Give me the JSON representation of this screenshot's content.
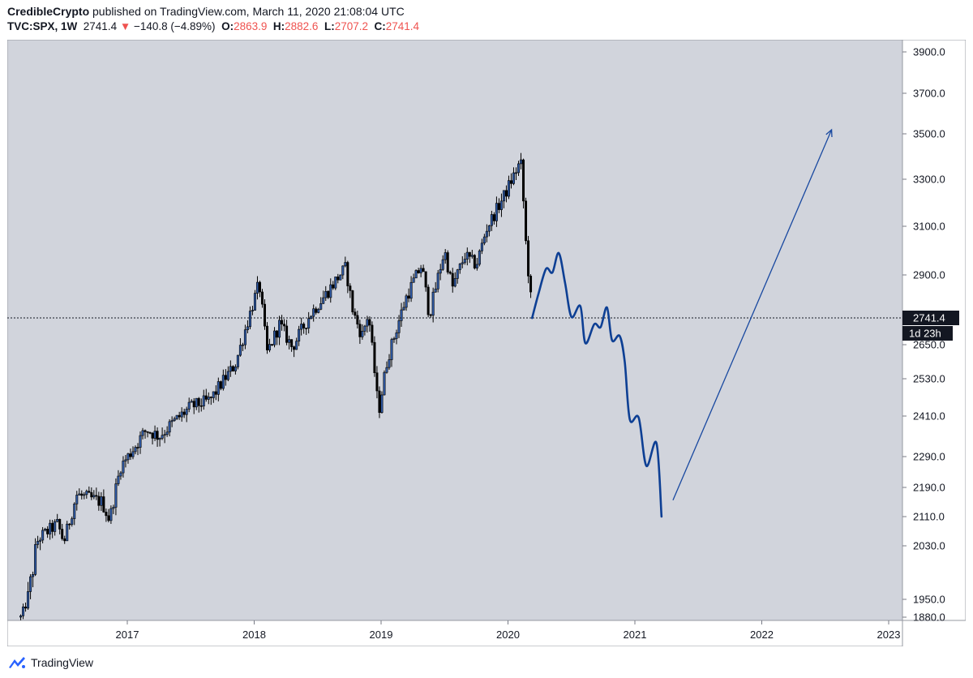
{
  "header": {
    "author": "CredibleCrypto",
    "published": "published on TradingView.com, March 11, 2020 21:08:04 UTC",
    "symbol": "TVC:SPX, 1W",
    "last": "2741.4",
    "change": "−140.8 (−4.89%)",
    "o_label": "O:",
    "o_value": "2863.9",
    "h_label": "H:",
    "h_value": "2882.6",
    "l_label": "L:",
    "l_value": "2707.2",
    "c_label": "C:",
    "c_value": "2741.4"
  },
  "footer": {
    "brand": "TradingView"
  },
  "colors": {
    "plot_bg": "#d1d4dc",
    "projection": "#0d3f94",
    "arrow": "#1848a0",
    "label_bg": "#131722"
  },
  "chart_data": {
    "type": "candlestick",
    "title": "TVC:SPX, 1W",
    "yticks": [
      "3900.0",
      "3700.0",
      "3500.0",
      "3300.0",
      "3100.0",
      "2900.0",
      "2650.0",
      "2530.0",
      "2410.0",
      "2290.0",
      "2190.0",
      "2110.0",
      "2030.0",
      "1950.0",
      "1880.0"
    ],
    "xticks": [
      "2017",
      "2018",
      "2019",
      "2020",
      "2021",
      "2022",
      "2023"
    ],
    "price_line": {
      "value": 2741.4,
      "label": "2741.4",
      "countdown": "1d 23h"
    },
    "price_anchors": [
      {
        "t": 2016.16,
        "p": 1880
      },
      {
        "t": 2016.3,
        "p": 2050
      },
      {
        "t": 2016.45,
        "p": 2090
      },
      {
        "t": 2016.5,
        "p": 2040
      },
      {
        "t": 2016.6,
        "p": 2170
      },
      {
        "t": 2016.8,
        "p": 2150
      },
      {
        "t": 2016.86,
        "p": 2100
      },
      {
        "t": 2016.95,
        "p": 2260
      },
      {
        "t": 2017.15,
        "p": 2370
      },
      {
        "t": 2017.25,
        "p": 2350
      },
      {
        "t": 2017.5,
        "p": 2440
      },
      {
        "t": 2017.65,
        "p": 2460
      },
      {
        "t": 2017.85,
        "p": 2580
      },
      {
        "t": 2018.04,
        "p": 2870
      },
      {
        "t": 2018.1,
        "p": 2620
      },
      {
        "t": 2018.2,
        "p": 2720
      },
      {
        "t": 2018.3,
        "p": 2640
      },
      {
        "t": 2018.45,
        "p": 2760
      },
      {
        "t": 2018.55,
        "p": 2820
      },
      {
        "t": 2018.72,
        "p": 2930
      },
      {
        "t": 2018.78,
        "p": 2760
      },
      {
        "t": 2018.85,
        "p": 2680
      },
      {
        "t": 2018.9,
        "p": 2760
      },
      {
        "t": 2018.98,
        "p": 2420
      },
      {
        "t": 2019.05,
        "p": 2600
      },
      {
        "t": 2019.2,
        "p": 2820
      },
      {
        "t": 2019.32,
        "p": 2940
      },
      {
        "t": 2019.38,
        "p": 2750
      },
      {
        "t": 2019.5,
        "p": 3000
      },
      {
        "t": 2019.56,
        "p": 2850
      },
      {
        "t": 2019.66,
        "p": 2980
      },
      {
        "t": 2019.75,
        "p": 2940
      },
      {
        "t": 2019.83,
        "p": 3090
      },
      {
        "t": 2019.97,
        "p": 3230
      },
      {
        "t": 2020.1,
        "p": 3380
      },
      {
        "t": 2020.12,
        "p": 3220
      },
      {
        "t": 2020.15,
        "p": 2950
      },
      {
        "t": 2020.17,
        "p": 2880
      },
      {
        "t": 2020.19,
        "p": 2741
      }
    ],
    "projection_path": [
      {
        "t": 2020.19,
        "p": 2741
      },
      {
        "t": 2020.24,
        "p": 2830
      },
      {
        "t": 2020.3,
        "p": 2925
      },
      {
        "t": 2020.35,
        "p": 2910
      },
      {
        "t": 2020.4,
        "p": 2990
      },
      {
        "t": 2020.45,
        "p": 2870
      },
      {
        "t": 2020.5,
        "p": 2745
      },
      {
        "t": 2020.57,
        "p": 2785
      },
      {
        "t": 2020.61,
        "p": 2655
      },
      {
        "t": 2020.68,
        "p": 2720
      },
      {
        "t": 2020.73,
        "p": 2710
      },
      {
        "t": 2020.78,
        "p": 2780
      },
      {
        "t": 2020.82,
        "p": 2665
      },
      {
        "t": 2020.88,
        "p": 2680
      },
      {
        "t": 2020.92,
        "p": 2590
      },
      {
        "t": 2020.96,
        "p": 2400
      },
      {
        "t": 2021.03,
        "p": 2405
      },
      {
        "t": 2021.09,
        "p": 2260
      },
      {
        "t": 2021.17,
        "p": 2330
      },
      {
        "t": 2021.21,
        "p": 2110
      }
    ],
    "projection_arrow": {
      "from": {
        "t": 2021.3,
        "p": 2155
      },
      "to": {
        "t": 2022.55,
        "p": 3520
      }
    }
  }
}
